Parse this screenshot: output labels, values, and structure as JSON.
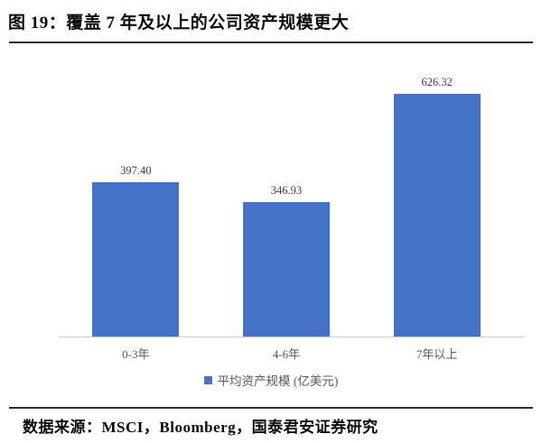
{
  "title": "图 19：覆盖 7 年及以上的公司资产规模更大",
  "source": "数据来源：MSCI，Bloomberg，国泰君安证券研究",
  "colors": {
    "bar": "#4472C4",
    "axis_line": "#cccccc",
    "tick_label": "#595959",
    "value_label": "#3f3f3f",
    "rule": "#2f2f2f"
  },
  "chart_data": {
    "type": "bar",
    "categories": [
      "0-3年",
      "4-6年",
      "7年以上"
    ],
    "values": [
      397.4,
      346.93,
      626.32
    ],
    "value_labels": [
      "397.40",
      "346.93",
      "626.32"
    ],
    "title": "",
    "xlabel": "",
    "ylabel": "",
    "legend": "平均资产规模 (亿美元)",
    "legend_position": "bottom",
    "yticks": [
      0,
      100,
      200,
      300,
      400,
      500,
      600,
      700
    ],
    "ylim": [
      0,
      700
    ],
    "grid": false
  }
}
